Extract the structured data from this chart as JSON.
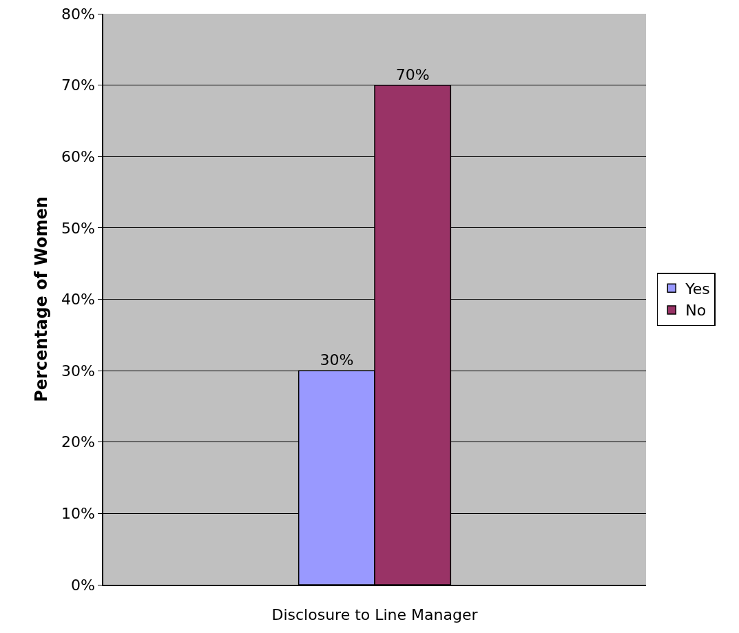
{
  "chart_data": {
    "type": "bar",
    "ylabel": "Percentage of Women",
    "xlabel": "Disclosure to Line Manager",
    "categories": [
      null
    ],
    "series": [
      {
        "name": "Yes",
        "color": "#9999ff",
        "values": [
          30
        ],
        "value_labels": [
          "30%"
        ]
      },
      {
        "name": "No",
        "color": "#993366",
        "values": [
          70
        ],
        "value_labels": [
          "70%"
        ]
      }
    ],
    "ylim": [
      0,
      80
    ],
    "yticks": [
      {
        "value": 0,
        "label": "0%"
      },
      {
        "value": 10,
        "label": "10%"
      },
      {
        "value": 20,
        "label": "20%"
      },
      {
        "value": 30,
        "label": "30%"
      },
      {
        "value": 40,
        "label": "40%"
      },
      {
        "value": 50,
        "label": "50%"
      },
      {
        "value": 60,
        "label": "60%"
      },
      {
        "value": 70,
        "label": "70%"
      },
      {
        "value": 80,
        "label": "80%"
      }
    ],
    "grid": "y",
    "legend": "right"
  }
}
